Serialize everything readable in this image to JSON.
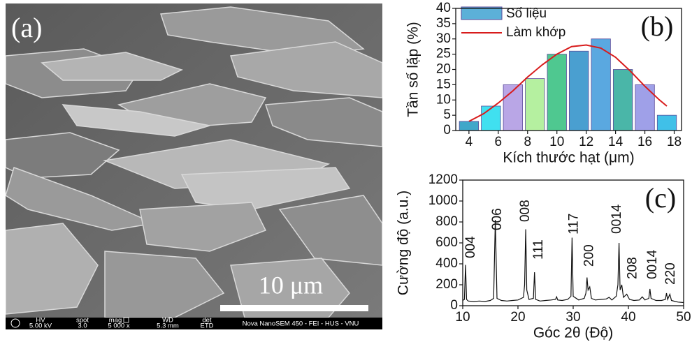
{
  "sem_image": {
    "label": "(a)",
    "scale_bar": "10 μm",
    "info": [
      {
        "name": "HV",
        "value": "5.00 kV"
      },
      {
        "name": "spot",
        "value": "3.0"
      },
      {
        "name": "mag",
        "value": "5 000 x"
      },
      {
        "name": "WD",
        "value": "5.3 mm"
      },
      {
        "name": "det",
        "value": "ETD"
      }
    ],
    "instrument": "Nova NanoSEM 450 - FEI - HUS - VNU"
  },
  "chart_data": [
    {
      "type": "histogram",
      "label": "(b)",
      "x_label": "Kích thước hạt (μm)",
      "y_label": "Tần số lặp (%)",
      "name": "Số liệu",
      "color": "#5cb0d8",
      "bins": [
        3.25,
        4.75,
        6.25,
        7.75,
        9.25,
        10.75,
        12.25,
        13.75,
        15.25,
        16.75,
        18.25
      ],
      "values": [
        3,
        8,
        15,
        17,
        25,
        26,
        30,
        20,
        15,
        5
      ],
      "colors": [
        "#3fa7c9",
        "#40e0f0",
        "#b9a6e6",
        "#b5f0a0",
        "#4fc890",
        "#4a9fd0",
        "#5aa8e0",
        "#4ab6a8",
        "#9fa0e8",
        "#40c0e8"
      ],
      "fit": {
        "name": "Làm khớp",
        "color": "#d81c1c",
        "x": [
          4,
          5,
          6,
          7,
          8,
          9,
          10,
          11,
          12,
          13,
          14,
          15,
          16,
          17,
          17.5
        ],
        "values": [
          3,
          5.5,
          9,
          13,
          17.5,
          21.5,
          25,
          27.5,
          28,
          27,
          24,
          19.5,
          14.5,
          10,
          8
        ]
      },
      "xlim": [
        3.1,
        18.5
      ],
      "ylim": [
        0,
        40
      ],
      "xticks": [
        4,
        6,
        8,
        10,
        12,
        14,
        16,
        18
      ],
      "yticks": [
        0,
        5,
        10,
        15,
        20,
        25,
        30,
        35,
        40
      ]
    },
    {
      "type": "line",
      "label": "(c)",
      "x_label": "Góc 2θ (Độ)",
      "y_label": "Cường độ (a.u.)",
      "color": "#111111",
      "x": [
        10,
        10.3,
        10.5,
        10.7,
        11,
        12,
        13,
        14,
        15,
        15.6,
        15.9,
        16.2,
        17,
        18,
        19,
        20,
        21,
        21.2,
        21.4,
        21.6,
        22,
        22.8,
        23,
        23.2,
        24,
        25,
        26,
        26.8,
        27,
        27.2,
        28,
        29,
        29.6,
        29.8,
        30,
        31,
        32,
        32.3,
        32.5,
        32.7,
        33,
        33.3,
        34,
        35,
        36,
        36.5,
        37,
        37.8,
        38.1,
        38.3,
        38.5,
        38.8,
        39.1,
        39.7,
        40.2,
        41,
        42,
        42.5,
        43,
        43.7,
        43.9,
        44.1,
        45,
        46,
        46.7,
        46.9,
        47.1,
        47.5,
        47.8,
        48.5,
        49,
        50
      ],
      "values": [
        50,
        60,
        390,
        60,
        45,
        40,
        45,
        40,
        50,
        70,
        820,
        70,
        50,
        45,
        50,
        55,
        80,
        200,
        730,
        150,
        60,
        70,
        320,
        60,
        45,
        50,
        55,
        60,
        85,
        55,
        50,
        60,
        90,
        650,
        90,
        55,
        70,
        120,
        270,
        150,
        180,
        70,
        55,
        60,
        65,
        80,
        55,
        90,
        200,
        600,
        150,
        200,
        80,
        110,
        60,
        50,
        55,
        85,
        55,
        70,
        160,
        70,
        50,
        50,
        60,
        120,
        60,
        110,
        50,
        40,
        35,
        30
      ],
      "annotations": [
        {
          "text": "004",
          "x": 11.5,
          "y": 453
        },
        {
          "text": "006",
          "x": 16.3,
          "y": 720
        },
        {
          "text": "008",
          "x": 21.4,
          "y": 800
        },
        {
          "text": "111",
          "x": 23.8,
          "y": 440
        },
        {
          "text": "117",
          "x": 30.2,
          "y": 680
        },
        {
          "text": "200",
          "x": 33,
          "y": 373
        },
        {
          "text": "0014",
          "x": 38,
          "y": 687
        },
        {
          "text": "208",
          "x": 40.8,
          "y": 253
        },
        {
          "text": "0014",
          "x": 44.4,
          "y": 253
        },
        {
          "text": "220",
          "x": 47.7,
          "y": 200
        }
      ],
      "xlim": [
        10,
        50
      ],
      "ylim": [
        0,
        1200
      ],
      "xticks": [
        10,
        20,
        30,
        40,
        50
      ],
      "yticks": [
        0,
        200,
        400,
        600,
        800,
        1000,
        1200
      ]
    }
  ]
}
